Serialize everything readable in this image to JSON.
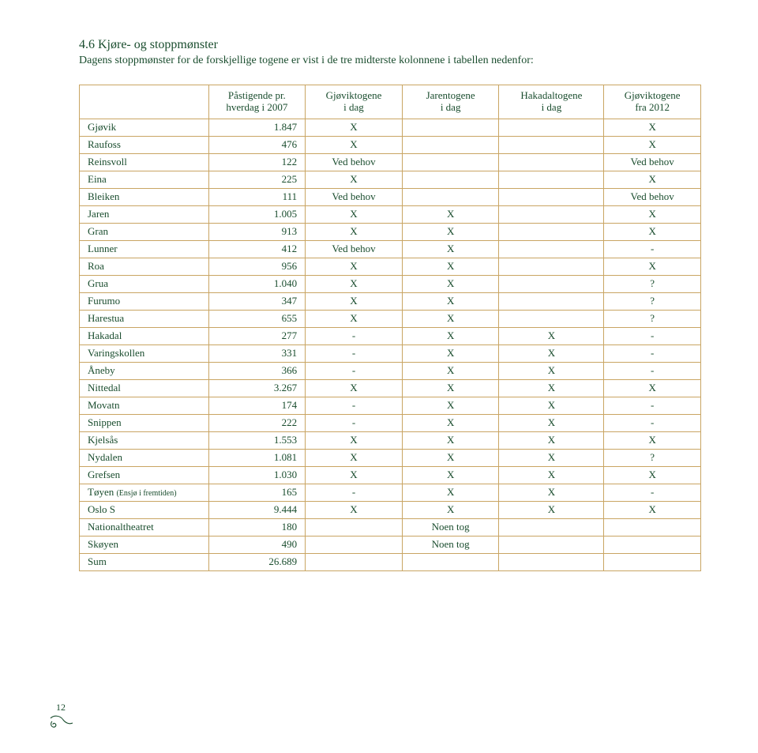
{
  "heading": "4.6 Kjøre- og stoppmønster",
  "intro": "Dagens stoppmønster for de forskjellige togene er vist i de tre midterste kolonnene i tabellen nedenfor:",
  "columns": {
    "c2": "Påstigende pr.\nhverdag i 2007",
    "c3": "Gjøviktogene\ni dag",
    "c4": "Jarentogene\ni dag",
    "c5": "Hakadaltogene\ni dag",
    "c6": "Gjøviktogene\nfra 2012"
  },
  "footnote_label": "(Ensjø i fremtiden)",
  "sum_label": "Sum",
  "sum_value": "26.689",
  "page_number": "12",
  "rows": [
    {
      "station": "Gjøvik",
      "n": "1.847",
      "c3": "X",
      "c4": "",
      "c5": "",
      "c6": "X"
    },
    {
      "station": "Raufoss",
      "n": "476",
      "c3": "X",
      "c4": "",
      "c5": "",
      "c6": "X"
    },
    {
      "station": "Reinsvoll",
      "n": "122",
      "c3": "Ved behov",
      "c4": "",
      "c5": "",
      "c6": "Ved behov"
    },
    {
      "station": "Eina",
      "n": "225",
      "c3": "X",
      "c4": "",
      "c5": "",
      "c6": "X"
    },
    {
      "station": "Bleiken",
      "n": "111",
      "c3": "Ved behov",
      "c4": "",
      "c5": "",
      "c6": "Ved behov"
    },
    {
      "station": "Jaren",
      "n": "1.005",
      "c3": "X",
      "c4": "X",
      "c5": "",
      "c6": "X"
    },
    {
      "station": "Gran",
      "n": "913",
      "c3": "X",
      "c4": "X",
      "c5": "",
      "c6": "X"
    },
    {
      "station": "Lunner",
      "n": "412",
      "c3": "Ved behov",
      "c4": "X",
      "c5": "",
      "c6": "-"
    },
    {
      "station": "Roa",
      "n": "956",
      "c3": "X",
      "c4": "X",
      "c5": "",
      "c6": "X"
    },
    {
      "station": "Grua",
      "n": "1.040",
      "c3": "X",
      "c4": "X",
      "c5": "",
      "c6": "?"
    },
    {
      "station": "Furumo",
      "n": "347",
      "c3": "X",
      "c4": "X",
      "c5": "",
      "c6": "?"
    },
    {
      "station": "Harestua",
      "n": "655",
      "c3": "X",
      "c4": "X",
      "c5": "",
      "c6": "?"
    },
    {
      "station": "Hakadal",
      "n": "277",
      "c3": "-",
      "c4": "X",
      "c5": "X",
      "c6": "-"
    },
    {
      "station": "Varingskollen",
      "n": "331",
      "c3": "-",
      "c4": "X",
      "c5": "X",
      "c6": "-"
    },
    {
      "station": "Åneby",
      "n": "366",
      "c3": "-",
      "c4": "X",
      "c5": "X",
      "c6": "-"
    },
    {
      "station": "Nittedal",
      "n": "3.267",
      "c3": "X",
      "c4": "X",
      "c5": "X",
      "c6": "X"
    },
    {
      "station": "Movatn",
      "n": "174",
      "c3": "-",
      "c4": "X",
      "c5": "X",
      "c6": "-"
    },
    {
      "station": "Snippen",
      "n": "222",
      "c3": "-",
      "c4": "X",
      "c5": "X",
      "c6": "-"
    },
    {
      "station": "Kjelsås",
      "n": "1.553",
      "c3": "X",
      "c4": "X",
      "c5": "X",
      "c6": "X"
    },
    {
      "station": "Nydalen",
      "n": "1.081",
      "c3": "X",
      "c4": "X",
      "c5": "X",
      "c6": "?"
    },
    {
      "station": "Grefsen",
      "n": "1.030",
      "c3": "X",
      "c4": "X",
      "c5": "X",
      "c6": "X"
    },
    {
      "station": "Tøyen",
      "sub": true,
      "n": "165",
      "c3": "-",
      "c4": "X",
      "c5": "X",
      "c6": "-"
    },
    {
      "station": "Oslo S",
      "n": "9.444",
      "c3": "X",
      "c4": "X",
      "c5": "X",
      "c6": "X"
    },
    {
      "station": "Nationaltheatret",
      "n": "180",
      "c3": "",
      "c4": "Noen tog",
      "c5": "",
      "c6": ""
    },
    {
      "station": "Skøyen",
      "n": "490",
      "c3": "",
      "c4": "Noen tog",
      "c5": "",
      "c6": ""
    }
  ],
  "colors": {
    "text": "#1a4d2e",
    "border": "#c9a563",
    "background": "#ffffff"
  }
}
